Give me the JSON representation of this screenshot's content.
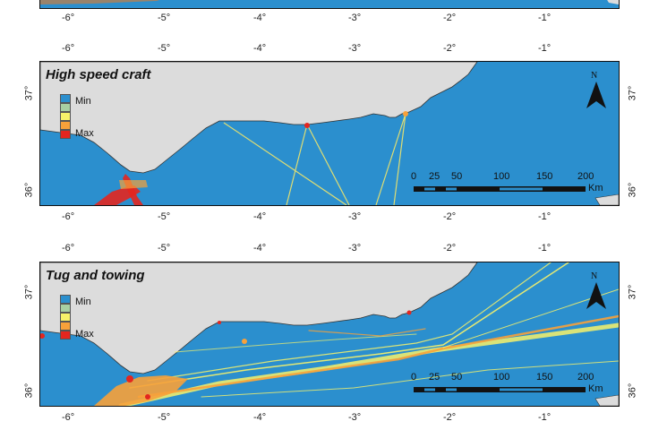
{
  "x_ticks": [
    "-6°",
    "-5°",
    "-4°",
    "-3°",
    "-2°",
    "-1°"
  ],
  "y_ticks": [
    "37°",
    "36°"
  ],
  "north_label": "N",
  "panels": [
    {
      "title": ""
    },
    {
      "title": "High speed craft"
    },
    {
      "title": "Tug and towing"
    }
  ],
  "legend": {
    "min_label": "Min",
    "max_label": "Max",
    "colors": [
      "#2b8fce",
      "#a8cfa2",
      "#f7f26a",
      "#f7a13a",
      "#e3261f"
    ]
  },
  "scale_bar": {
    "labels": [
      "0",
      "25",
      "50",
      "100",
      "150",
      "200"
    ],
    "unit": "Km"
  },
  "colors": {
    "sea": "#2b8fce",
    "land": "#dcdcdc",
    "coast": "#333333"
  }
}
